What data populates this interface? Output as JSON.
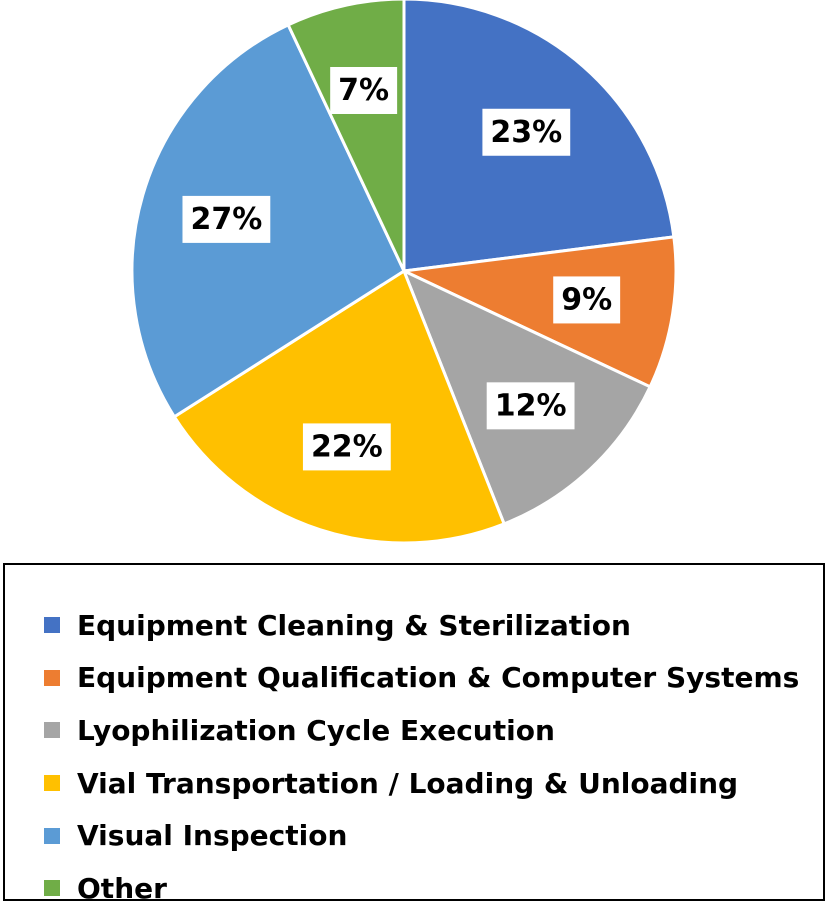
{
  "chart_data": {
    "type": "pie",
    "title": "",
    "start_angle_deg": 0,
    "direction": "clockwise",
    "slices": [
      {
        "name": "Equipment Cleaning & Sterilization",
        "value": 23,
        "label": "23%",
        "color": "#4472C4"
      },
      {
        "name": "Equipment Qualification & Computer Systems",
        "value": 9,
        "label": "9%",
        "color": "#ED7D31"
      },
      {
        "name": "Lyophilization Cycle Execution",
        "value": 12,
        "label": "12%",
        "color": "#A5A5A5"
      },
      {
        "name": "Vial Transportation / Loading & Unloading",
        "value": 22,
        "label": "22%",
        "color": "#FFC000"
      },
      {
        "name": "Visual Inspection",
        "value": 27,
        "label": "27%",
        "color": "#5B9BD5"
      },
      {
        "name": "Other",
        "value": 7,
        "label": "7%",
        "color": "#70AD47"
      }
    ],
    "legend_position": "bottom"
  }
}
